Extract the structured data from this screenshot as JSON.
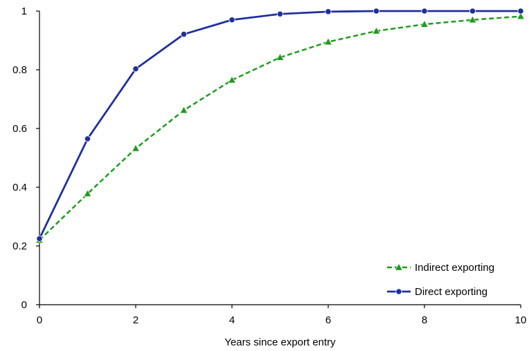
{
  "chart_data": {
    "type": "line",
    "title": "",
    "xlabel": "Years since export entry",
    "ylabel": "",
    "xlim": [
      0,
      10
    ],
    "ylim": [
      0,
      1
    ],
    "x_ticks": [
      0,
      2,
      4,
      6,
      8,
      10
    ],
    "x_tick_labels": [
      "0",
      "2",
      "4",
      "6",
      "8",
      "10"
    ],
    "y_ticks": [
      0,
      0.2,
      0.4,
      0.6,
      0.8,
      1
    ],
    "y_tick_labels": [
      "0",
      "0.2",
      "0.4",
      "0.6",
      "0.8",
      "1"
    ],
    "grid": false,
    "legend_position": "bottom-right",
    "x": [
      0,
      1,
      2,
      3,
      4,
      5,
      6,
      7,
      8,
      9,
      10
    ],
    "series": [
      {
        "name": "Indirect exporting",
        "values": [
          0.22,
          0.378,
          0.532,
          0.662,
          0.765,
          0.842,
          0.895,
          0.932,
          0.955,
          0.97,
          0.982
        ],
        "color": "#1f9a1f",
        "line_style": "dashed",
        "marker": "triangle"
      },
      {
        "name": "Direct exporting",
        "values": [
          0.225,
          0.565,
          0.803,
          0.921,
          0.97,
          0.99,
          0.998,
          1.0,
          1.0,
          1.0,
          1.0
        ],
        "color": "#1f2f9c",
        "line_style": "solid",
        "marker": "circle"
      }
    ]
  }
}
